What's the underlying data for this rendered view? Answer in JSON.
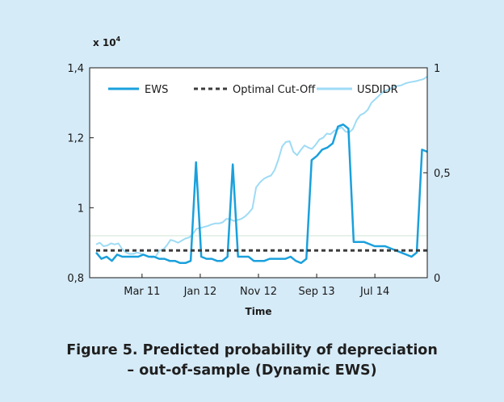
{
  "figure": {
    "caption_line1": "Figure 5. Predicted probability of depreciation",
    "caption_line2": "– out-of-sample (Dynamic EWS)"
  },
  "colors": {
    "background": "#d6ebf8",
    "plot_background": "#ffffff",
    "ews": "#1aa0dc",
    "cutoff": "#3c3c3c",
    "usdidr": "#9edbf5"
  },
  "chart_data": {
    "type": "line",
    "xlabel": "Time",
    "ylabel_left": "x 10",
    "ylabel_left_exp": "4",
    "left_axis": {
      "ylim": [
        0.8,
        1.4
      ],
      "ticks": [
        0.8,
        1.0,
        1.2,
        1.4
      ],
      "tick_labels": [
        "0,8",
        "1",
        "1,2",
        "1,4"
      ]
    },
    "right_axis": {
      "ylim": [
        0,
        1
      ],
      "ticks": [
        0,
        0.5,
        1
      ],
      "tick_labels": [
        "0",
        "0,5",
        "1"
      ]
    },
    "x_ticks": [
      "Mar 11",
      "Jan 12",
      "Nov 12",
      "Sep 13",
      "Jul 14"
    ],
    "x_tick_positions": [
      5,
      15,
      25,
      35,
      45
    ],
    "xlim": [
      -4,
      54
    ],
    "grid": false,
    "legend": {
      "placement": "top",
      "entries": [
        "EWS",
        "Optimal Cut-Off",
        "USDIDR"
      ]
    },
    "series": [
      {
        "name": "USDIDR",
        "axis": "left",
        "values": [
          0.895,
          0.9,
          0.89,
          0.892,
          0.898,
          0.895,
          0.898,
          0.882,
          0.872,
          0.868,
          0.868,
          0.872,
          0.869,
          0.864,
          0.86,
          0.858,
          0.86,
          0.878,
          0.88,
          0.892,
          0.908,
          0.905,
          0.9,
          0.906,
          0.912,
          0.915,
          0.925,
          0.94,
          0.942,
          0.945,
          0.948,
          0.952,
          0.955,
          0.955,
          0.958,
          0.968,
          0.968,
          0.962,
          0.965,
          0.968,
          0.975,
          0.985,
          0.998,
          1.058,
          1.072,
          1.082,
          1.088,
          1.092,
          1.108,
          1.138,
          1.175,
          1.188,
          1.19,
          1.16,
          1.15,
          1.165,
          1.178,
          1.172,
          1.168,
          1.18,
          1.195,
          1.2,
          1.212,
          1.21,
          1.22,
          1.225,
          1.23,
          1.218,
          1.215,
          1.225,
          1.25,
          1.265,
          1.27,
          1.28,
          1.3,
          1.31,
          1.32,
          1.33,
          1.335,
          1.34,
          1.345,
          1.348,
          1.35,
          1.355,
          1.358,
          1.36,
          1.362,
          1.365,
          1.368,
          1.375
        ]
      },
      {
        "name": "EWS",
        "axis": "right",
        "values": [
          0.12,
          0.09,
          0.1,
          0.08,
          0.11,
          0.1,
          0.1,
          0.1,
          0.1,
          0.11,
          0.1,
          0.1,
          0.09,
          0.09,
          0.08,
          0.08,
          0.07,
          0.07,
          0.08,
          0.55,
          0.1,
          0.09,
          0.09,
          0.08,
          0.08,
          0.1,
          0.54,
          0.1,
          0.1,
          0.1,
          0.08,
          0.08,
          0.08,
          0.09,
          0.09,
          0.09,
          0.09,
          0.1,
          0.08,
          0.07,
          0.09,
          0.56,
          0.58,
          0.61,
          0.62,
          0.64,
          0.72,
          0.73,
          0.71,
          0.17,
          0.17,
          0.17,
          0.16,
          0.15,
          0.15,
          0.15,
          0.14,
          0.13,
          0.12,
          0.11,
          0.1,
          0.12,
          0.61,
          0.6
        ]
      },
      {
        "name": "Optimal Cut-Off",
        "axis": "right",
        "values": [
          0.13,
          0.13
        ]
      }
    ]
  }
}
